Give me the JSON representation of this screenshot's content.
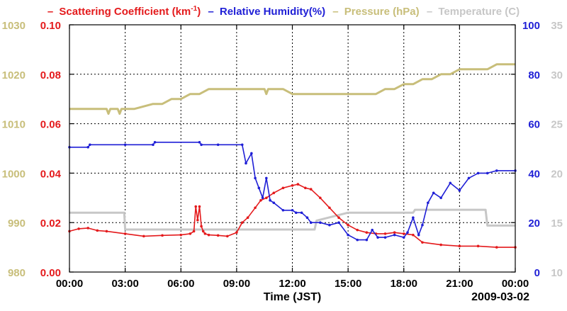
{
  "chart_data": {
    "type": "line",
    "legend": [
      {
        "key": "scattering",
        "dash": "–",
        "label": "Scattering Coefficient (km",
        "sup": "-1",
        "tail": ")",
        "color": "#e41a1c"
      },
      {
        "key": "humidity",
        "dash": "–",
        "label": "Relative Humidity(%)",
        "color": "#1f1fd6"
      },
      {
        "key": "pressure",
        "dash": "–",
        "label": "Pressure (hPa)",
        "color": "#c8be7a"
      },
      {
        "key": "temperature",
        "dash": "–",
        "label": "Temperature (C)",
        "color": "#c7c7c7"
      }
    ],
    "xlabel": "Time (JST)",
    "date_label": "2009-03-02",
    "x_range": [
      0,
      24
    ],
    "x_ticks": [
      0,
      3,
      6,
      9,
      12,
      15,
      18,
      21,
      24
    ],
    "x_tick_labels": [
      "00:00",
      "03:00",
      "06:00",
      "09:00",
      "12:00",
      "15:00",
      "18:00",
      "21:00",
      "00:00"
    ],
    "axes": {
      "scattering": {
        "range": [
          0,
          0.1
        ],
        "ticks": [
          0,
          0.02,
          0.04,
          0.06,
          0.08,
          0.1
        ],
        "labels": [
          "0.00",
          "0.02",
          "0.04",
          "0.06",
          "0.08",
          "0.10"
        ],
        "color": "#e41a1c"
      },
      "pressure": {
        "range": [
          980,
          1030
        ],
        "ticks": [
          980,
          990,
          1000,
          1010,
          1020,
          1030
        ],
        "labels": [
          "980",
          "990",
          "1000",
          "1010",
          "1020",
          "1030"
        ],
        "color": "#c8be7a"
      },
      "humidity": {
        "range": [
          0,
          100
        ],
        "ticks": [
          0,
          20,
          40,
          60,
          80,
          100
        ],
        "labels": [
          "0",
          "20",
          "40",
          "60",
          "80",
          "100"
        ],
        "color": "#1f1fd6"
      },
      "temperature": {
        "range": [
          10,
          35
        ],
        "ticks": [
          10,
          15,
          20,
          25,
          30,
          35
        ],
        "labels": [
          "10",
          "15",
          "20",
          "25",
          "30",
          "35"
        ],
        "color": "#c7c7c7"
      }
    },
    "series": [
      {
        "name": "Scattering Coefficient",
        "axis": "scattering",
        "color": "#e41a1c",
        "x": [
          0,
          0.5,
          1,
          1.5,
          2,
          3,
          4,
          5,
          6,
          6.5,
          6.7,
          6.8,
          6.9,
          7.0,
          7.1,
          7.2,
          7.3,
          7.5,
          8,
          8.5,
          9,
          9.3,
          9.6,
          10,
          10.3,
          10.6,
          11,
          11.5,
          12,
          12.3,
          12.7,
          13,
          13.5,
          14,
          14.5,
          15,
          15.5,
          16,
          16.5,
          17,
          17.5,
          18,
          18.5,
          19,
          20,
          21,
          22,
          23,
          24
        ],
        "y": [
          0.0165,
          0.0175,
          0.0178,
          0.0168,
          0.0165,
          0.0155,
          0.0145,
          0.0148,
          0.015,
          0.0155,
          0.0165,
          0.0265,
          0.021,
          0.0265,
          0.0185,
          0.0165,
          0.0155,
          0.015,
          0.0148,
          0.0145,
          0.016,
          0.02,
          0.022,
          0.026,
          0.029,
          0.03,
          0.032,
          0.034,
          0.035,
          0.0355,
          0.034,
          0.0335,
          0.03,
          0.026,
          0.022,
          0.019,
          0.017,
          0.016,
          0.0155,
          0.0155,
          0.016,
          0.0155,
          0.015,
          0.012,
          0.011,
          0.0105,
          0.0105,
          0.01,
          0.01
        ]
      },
      {
        "name": "Relative Humidity",
        "axis": "humidity",
        "color": "#1f1fd6",
        "x": [
          0,
          1,
          1.1,
          3,
          4.5,
          4.6,
          7,
          7.1,
          8,
          9.3,
          9.5,
          9.8,
          10.0,
          10.2,
          10.4,
          10.6,
          10.8,
          11.0,
          11.5,
          12.0,
          12.2,
          12.5,
          12.8,
          13.0,
          13.5,
          14,
          14.5,
          15,
          15.5,
          16,
          16.3,
          16.6,
          17,
          17.5,
          18,
          18.2,
          18.5,
          18.8,
          19,
          19.3,
          19.6,
          20,
          20.5,
          21,
          21.5,
          22,
          22.5,
          23,
          24
        ],
        "y": [
          50.5,
          50.5,
          51.5,
          51.5,
          51.5,
          52.5,
          52.5,
          51.5,
          51.5,
          51.5,
          44,
          48,
          38,
          34,
          30,
          38,
          29,
          28,
          25,
          25,
          24,
          24,
          22,
          20,
          20,
          19,
          20,
          15,
          13,
          13,
          17,
          14,
          14,
          15,
          14,
          16,
          22,
          15,
          19,
          28,
          32,
          30,
          36,
          33,
          38,
          40,
          40,
          41,
          41
        ]
      },
      {
        "name": "Pressure",
        "axis": "pressure",
        "color": "#c8be7a",
        "x": [
          0,
          2,
          2.1,
          2.2,
          2.6,
          2.7,
          2.8,
          3,
          3.5,
          4,
          4.5,
          5,
          5.5,
          6,
          6.5,
          7,
          7.5,
          10.5,
          10.6,
          10.7,
          11,
          11.5,
          12,
          13,
          14,
          15,
          16,
          16.5,
          17,
          17.5,
          18,
          18.5,
          19,
          19.5,
          20,
          20.5,
          21,
          21.5,
          22,
          22.5,
          23,
          24
        ],
        "y": [
          1013,
          1013,
          1012,
          1013,
          1013,
          1012,
          1013,
          1013,
          1013,
          1013.5,
          1014,
          1014,
          1015,
          1015,
          1016,
          1016,
          1017,
          1017,
          1016,
          1017,
          1017,
          1017,
          1016,
          1016,
          1016,
          1016,
          1016,
          1016,
          1017,
          1017,
          1018,
          1018,
          1019,
          1019,
          1020,
          1020,
          1021,
          1021,
          1021,
          1021,
          1022,
          1022
        ]
      },
      {
        "name": "Temperature",
        "axis": "temperature",
        "color": "#c7c7c7",
        "x": [
          0,
          2.95,
          3.0,
          8.9,
          9.0,
          13.2,
          13.3,
          15,
          18.5,
          18.6,
          22.4,
          22.5,
          24
        ],
        "y": [
          16,
          16,
          14.3,
          14.3,
          14.3,
          14.3,
          15.2,
          16,
          16,
          16.3,
          16.3,
          14.7,
          14.7
        ]
      }
    ]
  }
}
